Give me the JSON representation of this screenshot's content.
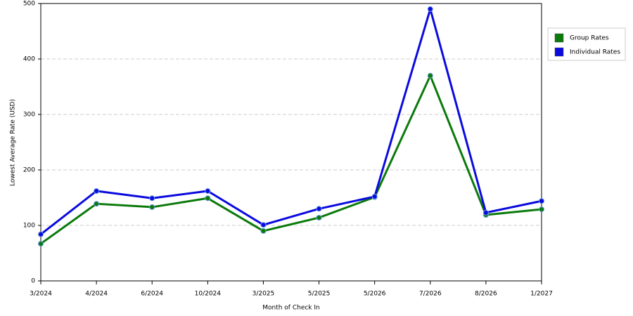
{
  "chart_data": {
    "type": "line",
    "x_label": "Month of Check In",
    "y_label": "Lowest Average Rate (USD)",
    "categories": [
      "3/2024",
      "4/2024",
      "6/2024",
      "10/2024",
      "3/2025",
      "5/2025",
      "5/2026",
      "7/2026",
      "8/2026",
      "1/2027"
    ],
    "series": [
      {
        "name": "Group Rates",
        "color": "#0b7a0b",
        "values": [
          67,
          139,
          133,
          149,
          90,
          114,
          151,
          370,
          119,
          129
        ]
      },
      {
        "name": "Individual Rates",
        "color": "#0a0adf",
        "values": [
          84,
          162,
          149,
          162,
          101,
          130,
          152,
          490,
          123,
          144
        ]
      }
    ],
    "ylim": [
      0,
      500
    ],
    "yticks": [
      0,
      100,
      200,
      300,
      400,
      500
    ],
    "grid": true,
    "legend": "right"
  }
}
